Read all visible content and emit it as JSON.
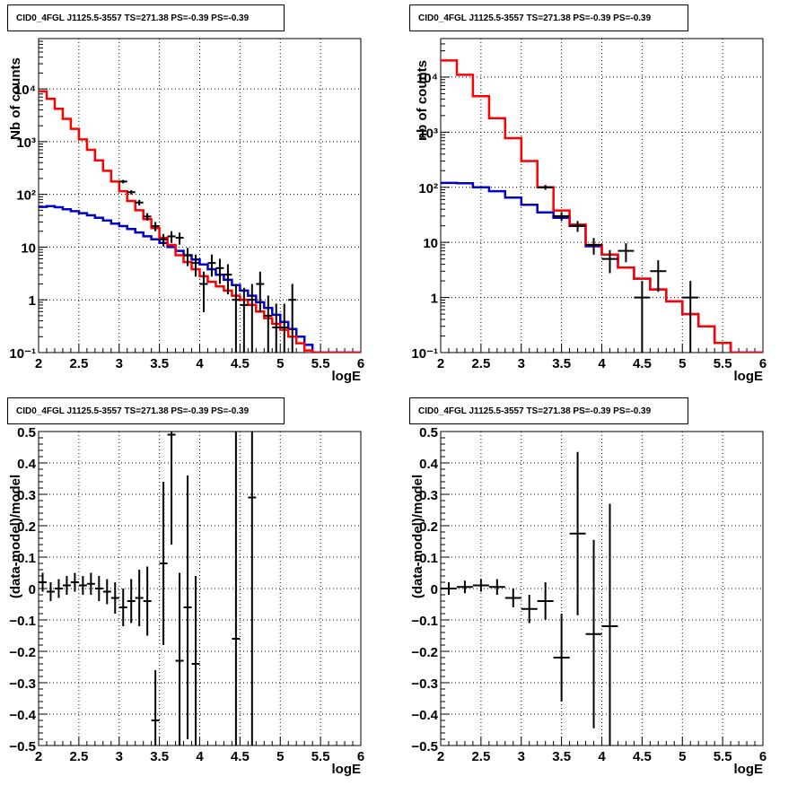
{
  "colors": {
    "data": "#000000",
    "model": "#ff0000",
    "background_model": "#0000cc"
  },
  "chart_data": [
    {
      "type": "line",
      "title": "CID0_4FGL J1125.5-3557 TS=271.38 PS=-0.39 PS=-0.39",
      "xlabel": "logE",
      "ylabel": "Nb of counts",
      "xlim": [
        2,
        6
      ],
      "ylim": [
        0.1,
        90000
      ],
      "yscale": "log",
      "grid": true,
      "xticks": [
        "2",
        "2.5",
        "3",
        "3.5",
        "4",
        "4.5",
        "5",
        "5.5",
        "6"
      ],
      "yticks": [
        "10⁻¹",
        "1",
        "10",
        "10²",
        "10³",
        "10⁴"
      ],
      "series": [
        {
          "kind": "step",
          "bin_width": 0.1,
          "bin_edges": [
            2.0,
            2.1,
            2.2,
            2.3,
            2.4,
            2.5,
            2.6,
            2.7,
            2.8,
            2.9,
            3.0,
            3.1,
            3.2,
            3.3,
            3.4,
            3.5,
            3.6,
            3.7,
            3.8,
            3.9,
            4.0,
            4.1,
            4.2,
            4.3,
            4.4,
            4.5,
            4.6,
            4.7,
            4.8,
            4.9,
            5.0,
            5.1,
            5.2,
            5.3,
            5.4,
            5.5,
            5.6,
            5.7,
            5.8,
            5.9
          ],
          "values": [
            9000,
            6500,
            4200,
            2700,
            1750,
            1100,
            700,
            440,
            280,
            175,
            115,
            75,
            50,
            34,
            23,
            15,
            11,
            7,
            5.2,
            3.8,
            2.8,
            2.2,
            1.8,
            1.5,
            1.2,
            1.0,
            0.8,
            0.6,
            0.45,
            0.35,
            0.27,
            0.2,
            0.15,
            0.11,
            0.1,
            0.1,
            0.1,
            0.1,
            0.1,
            0.1
          ]
        },
        {
          "kind": "step",
          "bin_width": 0.1,
          "bin_edges": [
            2.0,
            2.1,
            2.2,
            2.3,
            2.4,
            2.5,
            2.6,
            2.7,
            2.8,
            2.9,
            3.0,
            3.1,
            3.2,
            3.3,
            3.4,
            3.5,
            3.6,
            3.7,
            3.8,
            3.9,
            4.0,
            4.1,
            4.2,
            4.3,
            4.4,
            4.5,
            4.6,
            4.7,
            4.8,
            4.9,
            5.0,
            5.1,
            5.2,
            5.3,
            5.4,
            5.5,
            5.6,
            5.7,
            5.8,
            5.9
          ],
          "values": [
            58,
            60,
            57,
            52,
            48,
            44,
            40,
            36,
            32,
            28,
            25,
            22,
            19,
            16,
            14,
            12,
            10,
            8.5,
            7,
            5.8,
            4.7,
            3.8,
            3.0,
            2.4,
            1.9,
            1.5,
            1.2,
            0.9,
            0.7,
            0.52,
            0.38,
            0.28,
            0.2,
            0.14,
            0.1,
            0.1,
            0.1,
            0.1,
            0.1,
            0.1
          ]
        },
        {
          "kind": "points",
          "x": [
            3.05,
            3.15,
            3.25,
            3.35,
            3.45,
            3.55,
            3.65,
            3.75,
            3.85,
            3.95,
            4.05,
            4.15,
            4.25,
            4.35,
            4.45,
            4.55,
            4.65,
            4.75,
            4.85,
            4.95,
            5.05,
            5.15
          ],
          "y": [
            175,
            110,
            70,
            38,
            25,
            14,
            16,
            15,
            7,
            5,
            2,
            5,
            4,
            3,
            1,
            0.8,
            1,
            2,
            0.5,
            0.3,
            0.3,
            1
          ],
          "xerr": 0.05
        }
      ]
    },
    {
      "type": "line",
      "title": "CID0_4FGL J1125.5-3557 TS=271.38 PS=-0.39 PS=-0.39",
      "xlabel": "logE",
      "ylabel": "nb of counts",
      "xlim": [
        2,
        6
      ],
      "ylim": [
        0.1,
        50000
      ],
      "yscale": "log",
      "grid": true,
      "xticks": [
        "2",
        "2.5",
        "3",
        "3.5",
        "4",
        "4.5",
        "5",
        "5.5",
        "6"
      ],
      "yticks": [
        "10⁻¹",
        "1",
        "10",
        "10²",
        "10³",
        "10⁴"
      ],
      "series": [
        {
          "kind": "step",
          "bin_width": 0.2,
          "bin_edges": [
            2.0,
            2.2,
            2.4,
            2.6,
            2.8,
            3.0,
            3.2,
            3.4,
            3.6,
            3.8,
            4.0,
            4.2,
            4.4,
            4.6,
            4.8,
            5.0,
            5.2,
            5.4,
            5.6,
            5.8
          ],
          "values": [
            20000,
            11000,
            4500,
            1800,
            780,
            300,
            100,
            38,
            21,
            9,
            6,
            3.5,
            2.2,
            1.4,
            0.85,
            0.5,
            0.3,
            0.15,
            0.1,
            0.1
          ]
        },
        {
          "kind": "step",
          "bin_width": 0.2,
          "bin_edges": [
            2.0,
            2.2,
            2.4,
            2.6,
            2.8,
            3.0,
            3.2,
            3.4,
            3.6,
            3.8,
            4.0,
            4.2,
            4.4,
            4.6,
            4.8,
            5.0,
            5.2,
            5.4,
            5.6,
            5.8
          ],
          "values": [
            120,
            118,
            100,
            85,
            65,
            48,
            35,
            28,
            20,
            8.5,
            6,
            3.5,
            2.2,
            1.4,
            0.85,
            0.5,
            0.3,
            0.15,
            0.1,
            0.1
          ]
        },
        {
          "kind": "points",
          "x": [
            3.3,
            3.5,
            3.7,
            3.9,
            4.1,
            4.3,
            4.5,
            4.7,
            5.1
          ],
          "y": [
            100,
            30,
            20,
            9,
            5,
            7,
            1,
            3,
            1
          ],
          "xerr": 0.1
        }
      ]
    },
    {
      "type": "scatter",
      "title": "CID0_4FGL J1125.5-3557 TS=271.38 PS=-0.39 PS=-0.39",
      "xlabel": "logE",
      "ylabel": "(data-model)/model",
      "xlim": [
        2,
        6
      ],
      "ylim": [
        -0.5,
        0.5
      ],
      "grid": true,
      "xticks": [
        "2",
        "2.5",
        "3",
        "3.5",
        "4",
        "4.5",
        "5",
        "5.5",
        "6"
      ],
      "yticks": [
        "-0.5",
        "-0.4",
        "-0.3",
        "-0.2",
        "-0.1",
        "0",
        "0.1",
        "0.2",
        "0.3",
        "0.4",
        "0.5"
      ],
      "series": [
        {
          "kind": "points",
          "x": [
            2.05,
            2.15,
            2.25,
            2.35,
            2.45,
            2.55,
            2.65,
            2.75,
            2.85,
            2.95,
            3.05,
            3.15,
            3.25,
            3.35,
            3.45,
            3.55,
            3.65,
            3.75,
            3.85,
            3.95,
            4.45,
            4.65
          ],
          "y": [
            0.02,
            -0.01,
            0.0,
            0.01,
            0.02,
            0.01,
            0.015,
            0.0,
            -0.01,
            -0.03,
            -0.06,
            -0.04,
            -0.03,
            -0.04,
            -0.42,
            0.08,
            0.49,
            -0.23,
            -0.06,
            -0.24,
            -0.16,
            0.29
          ],
          "yerr": [
            0.03,
            0.03,
            0.03,
            0.03,
            0.03,
            0.03,
            0.035,
            0.04,
            0.04,
            0.05,
            0.06,
            0.07,
            0.09,
            0.11,
            0.16,
            0.26,
            0.35,
            0.28,
            0.42,
            0.28,
            0.7,
            0.8
          ],
          "xerr": 0.05
        }
      ]
    },
    {
      "type": "scatter",
      "title": "CID0_4FGL J1125.5-3557 TS=271.38 PS=-0.39 PS=-0.39",
      "xlabel": "logE",
      "ylabel": "(data-model)/model",
      "xlim": [
        2,
        6
      ],
      "ylim": [
        -0.5,
        0.5
      ],
      "grid": true,
      "xticks": [
        "2",
        "2.5",
        "3",
        "3.5",
        "4",
        "4.5",
        "5",
        "5.5",
        "6"
      ],
      "yticks": [
        "-0.5",
        "-0.4",
        "-0.3",
        "-0.2",
        "-0.1",
        "0",
        "0.1",
        "0.2",
        "0.3",
        "0.4",
        "0.5"
      ],
      "series": [
        {
          "kind": "points",
          "x": [
            2.1,
            2.3,
            2.5,
            2.7,
            2.9,
            3.1,
            3.3,
            3.5,
            3.7,
            3.9,
            4.1
          ],
          "y": [
            0.0,
            0.005,
            0.01,
            0.005,
            -0.03,
            -0.065,
            -0.04,
            -0.22,
            0.175,
            -0.145,
            -0.12
          ],
          "yerr": [
            0.02,
            0.02,
            0.02,
            0.025,
            0.03,
            0.045,
            0.06,
            0.14,
            0.26,
            0.3,
            0.39
          ],
          "xerr": 0.1
        }
      ]
    }
  ]
}
